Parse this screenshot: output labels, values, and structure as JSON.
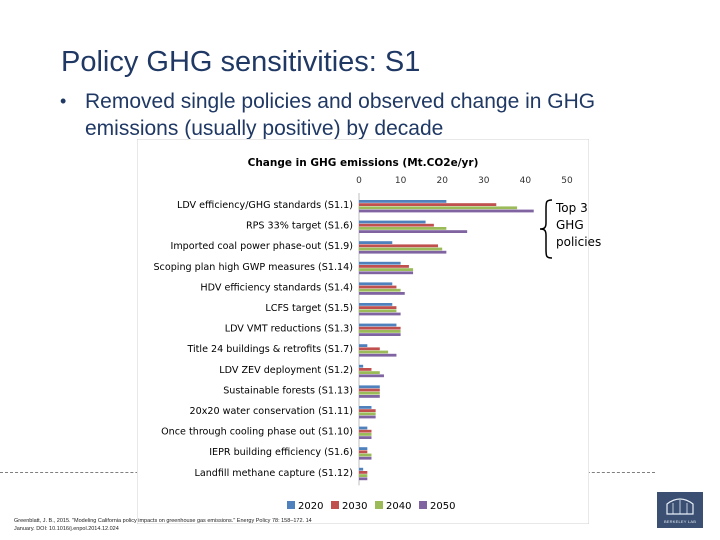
{
  "slide": {
    "title": "Policy GHG sensitivities: S1",
    "bullet": "Removed single policies and observed change in GHG emissions (usually positive) by decade",
    "callout": "Top 3\nGHG\npolicies",
    "citation_line1": "Greenblatt, J. B., 2015. \"Modeling California policy impacts on greenhouse gas emissions.\" Energy Policy 78: 158–172. 14",
    "citation_line2": "January. DOI: 10.1016/j.enpol.2014.12.024",
    "logo_text": "BERKELEY LAB"
  },
  "chart_data": {
    "type": "bar",
    "orientation": "horizontal",
    "title": "Change in GHG emissions (Mt.CO2e/yr)",
    "xlim": [
      0,
      50
    ],
    "ticks": [
      "0",
      "10",
      "20",
      "30",
      "40",
      "50"
    ],
    "legend_position": "bottom",
    "categories": [
      "LDV efficiency/GHG standards (S1.1)",
      "RPS 33% target (S1.6)",
      "Imported coal power phase-out (S1.9)",
      "Scoping plan high GWP measures (S1.14)",
      "HDV efficiency standards (S1.4)",
      "LCFS target (S1.5)",
      "LDV VMT reductions (S1.3)",
      "Title 24 buildings & retrofits (S1.7)",
      "LDV ZEV deployment (S1.2)",
      "Sustainable forests (S1.13)",
      "20x20 water conservation (S1.11)",
      "Once through cooling phase out (S1.10)",
      "IEPR building efficiency (S1.6)",
      "Landfill methane capture (S1.12)"
    ],
    "series": [
      {
        "name": "2020",
        "color": "#4f81bd",
        "values": [
          21,
          16,
          8,
          10,
          8,
          8,
          9,
          2,
          1,
          5,
          3,
          2,
          2,
          1
        ]
      },
      {
        "name": "2030",
        "color": "#c0504d",
        "values": [
          33,
          18,
          19,
          12,
          9,
          9,
          10,
          5,
          3,
          5,
          4,
          3,
          2,
          2
        ]
      },
      {
        "name": "2040",
        "color": "#9bbb59",
        "values": [
          38,
          21,
          20,
          13,
          10,
          9,
          10,
          7,
          5,
          5,
          4,
          3,
          3,
          2
        ]
      },
      {
        "name": "2050",
        "color": "#8064a2",
        "values": [
          42,
          26,
          21,
          13,
          11,
          10,
          10,
          9,
          6,
          5,
          4,
          3,
          3,
          2
        ]
      }
    ]
  }
}
